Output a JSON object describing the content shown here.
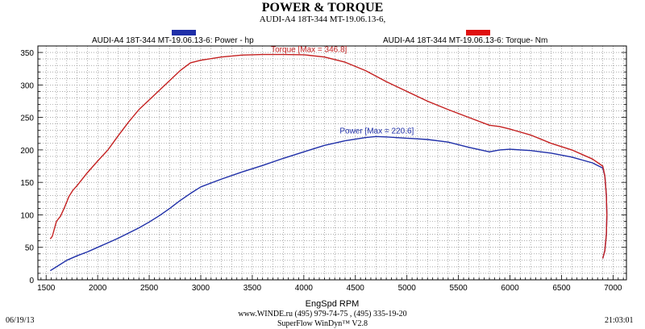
{
  "header": {
    "title": "POWER & TORQUE",
    "subtitle": "AUDI-A4 18T-344 MT-19.06.13-6,"
  },
  "footer": {
    "date": "06/19/13",
    "contact": "www.WINDE.ru  (495) 979-74-75 , (495) 335-19-20",
    "software": "SuperFlow WinDyn™ V2.8",
    "time": "21:03:01"
  },
  "colors": {
    "power": "#1f2fa8",
    "torque": "#c42020",
    "grid": "#777777"
  },
  "chart_data": {
    "type": "line",
    "title": "POWER & TORQUE",
    "xlabel": "EngSpd  RPM",
    "ylabel": "",
    "xlim": [
      1420,
      7130
    ],
    "ylim": [
      0,
      360
    ],
    "xticks": [
      1500,
      2000,
      2500,
      3000,
      3500,
      4000,
      4500,
      5000,
      5500,
      6000,
      6500,
      7000
    ],
    "yticks": [
      0,
      50,
      100,
      150,
      200,
      250,
      300,
      350
    ],
    "grid": true,
    "legend_position": "top",
    "series": [
      {
        "name": "AUDI-A4 18T-344 MT-19.06.13-6: Power -  hp",
        "color": "#1f2fa8",
        "max_label": "Power  [Max = 220.6]",
        "x": [
          1540,
          1600,
          1700,
          1800,
          1900,
          2000,
          2100,
          2200,
          2300,
          2400,
          2500,
          2600,
          2700,
          2800,
          2900,
          3000,
          3200,
          3400,
          3600,
          3800,
          4000,
          4200,
          4400,
          4600,
          4700,
          4800,
          5000,
          5200,
          5400,
          5600,
          5800,
          5900,
          6000,
          6200,
          6400,
          6600,
          6800,
          6900,
          6920,
          6935,
          6940,
          6935,
          6920,
          6900
        ],
        "y": [
          14,
          20,
          30,
          37,
          43,
          50,
          57,
          64,
          72,
          80,
          89,
          99,
          110,
          122,
          133,
          143,
          155,
          166,
          176,
          187,
          197,
          207,
          214,
          219,
          220.6,
          220,
          218,
          216,
          212,
          204,
          197,
          200,
          201,
          199,
          195,
          189,
          180,
          172,
          160,
          130,
          100,
          70,
          45,
          33
        ]
      },
      {
        "name": "AUDI-A4 18T-344 MT-19.06.13-6: Torque-  Nm",
        "color": "#c42020",
        "max_label": "Torque  [Max = 346.8]",
        "x": [
          1540,
          1560,
          1600,
          1640,
          1680,
          1720,
          1760,
          1800,
          1900,
          2000,
          2100,
          2200,
          2300,
          2400,
          2500,
          2600,
          2700,
          2800,
          2900,
          3000,
          3200,
          3400,
          3600,
          3800,
          4000,
          4200,
          4400,
          4600,
          4800,
          5000,
          5200,
          5400,
          5600,
          5800,
          5900,
          6000,
          6200,
          6400,
          6600,
          6800,
          6900,
          6920,
          6935,
          6940,
          6935,
          6920,
          6900
        ],
        "y": [
          63,
          67,
          90,
          98,
          112,
          128,
          138,
          145,
          165,
          183,
          200,
          222,
          243,
          262,
          277,
          292,
          307,
          322,
          334,
          338,
          343,
          346,
          346.8,
          346.8,
          346.5,
          343,
          335,
          322,
          305,
          290,
          275,
          262,
          250,
          238,
          236,
          232,
          223,
          210,
          200,
          186,
          175,
          160,
          130,
          100,
          70,
          45,
          33
        ]
      }
    ]
  }
}
